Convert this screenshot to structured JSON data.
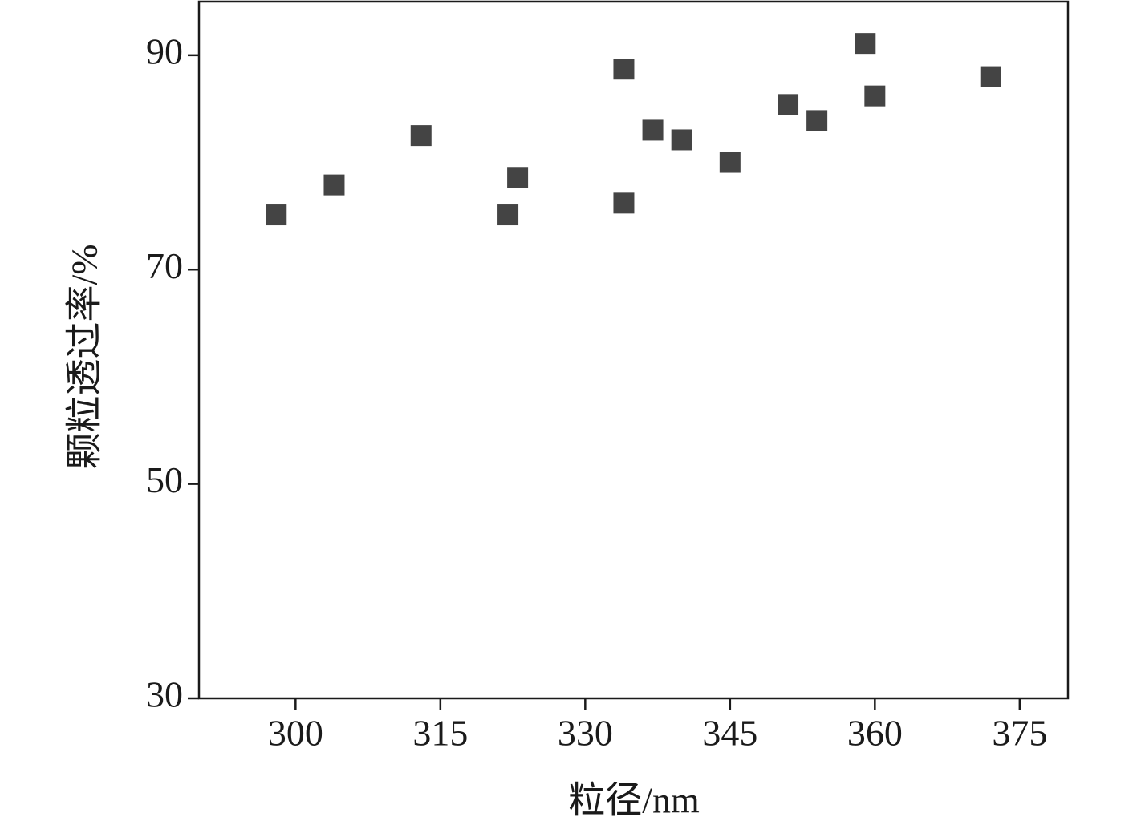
{
  "chart_data": {
    "type": "scatter",
    "x_label": "粒径/nm",
    "y_label": "颗粒透过率/%",
    "x": [
      298,
      304,
      313,
      322,
      323,
      334,
      334,
      337,
      340,
      345,
      351,
      354,
      359,
      360,
      372
    ],
    "values": [
      75.1,
      77.9,
      82.5,
      75.1,
      78.6,
      88.7,
      76.2,
      83.0,
      82.1,
      80.0,
      85.4,
      83.9,
      91.1,
      86.2,
      88.0
    ],
    "color": "#444444",
    "xlim": [
      290,
      380
    ],
    "xticks": [
      300,
      315,
      330,
      345,
      360,
      375
    ],
    "ylim": [
      30,
      95
    ],
    "yticks": [
      30,
      50,
      70,
      90
    ]
  }
}
